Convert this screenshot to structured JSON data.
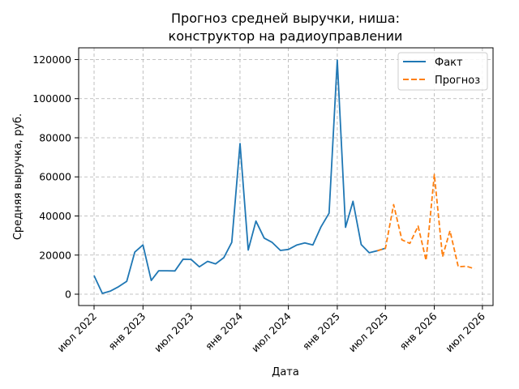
{
  "chart_data": {
    "type": "line",
    "title": "Прогноз средней выручки, ниша:",
    "subtitle": "конструктор на радиоуправлении",
    "xlabel": "Дата",
    "ylabel": "Средняя выручка, руб.",
    "x_ticks": [
      "июл 2022",
      "янв 2023",
      "июл 2023",
      "янв 2024",
      "июл 2024",
      "янв 2025",
      "июл 2025",
      "янв 2026",
      "июл 2026"
    ],
    "y_ticks": [
      0,
      20000,
      40000,
      60000,
      80000,
      100000,
      120000
    ],
    "xlim": [
      "2022-05-04",
      "2026-08-10"
    ],
    "ylim": [
      -5800,
      126000
    ],
    "grid": true,
    "legend_position": "top-right",
    "series": [
      {
        "name": "Факт",
        "color": "#1f77b4",
        "style": "solid",
        "points": [
          [
            "2022-07-01",
            9500
          ],
          [
            "2022-08-01",
            400
          ],
          [
            "2022-09-01",
            1600
          ],
          [
            "2022-10-01",
            3800
          ],
          [
            "2022-11-01",
            6600
          ],
          [
            "2022-12-01",
            21500
          ],
          [
            "2023-01-01",
            25200
          ],
          [
            "2023-02-01",
            7000
          ],
          [
            "2023-03-01",
            12000
          ],
          [
            "2023-04-01",
            12000
          ],
          [
            "2023-05-01",
            11900
          ],
          [
            "2023-06-01",
            17900
          ],
          [
            "2023-07-01",
            17800
          ],
          [
            "2023-08-01",
            14000
          ],
          [
            "2023-09-01",
            16800
          ],
          [
            "2023-10-01",
            15500
          ],
          [
            "2023-11-01",
            18700
          ],
          [
            "2023-12-01",
            26500
          ],
          [
            "2024-01-01",
            77000
          ],
          [
            "2024-02-01",
            22600
          ],
          [
            "2024-03-01",
            37400
          ],
          [
            "2024-04-01",
            28700
          ],
          [
            "2024-05-01",
            26500
          ],
          [
            "2024-06-01",
            22400
          ],
          [
            "2024-07-01",
            22900
          ],
          [
            "2024-08-01",
            25100
          ],
          [
            "2024-09-01",
            26200
          ],
          [
            "2024-10-01",
            25200
          ],
          [
            "2024-11-01",
            34500
          ],
          [
            "2024-12-01",
            41400
          ],
          [
            "2025-01-01",
            119700
          ],
          [
            "2025-02-01",
            34200
          ],
          [
            "2025-03-01",
            47500
          ],
          [
            "2025-04-01",
            25400
          ],
          [
            "2025-05-01",
            21200
          ],
          [
            "2025-06-01",
            22200
          ],
          [
            "2025-07-01",
            23500
          ]
        ]
      },
      {
        "name": "Прогноз",
        "color": "#ff7f0e",
        "style": "dashed",
        "points": [
          [
            "2025-06-01",
            22200
          ],
          [
            "2025-07-01",
            23500
          ],
          [
            "2025-08-01",
            45800
          ],
          [
            "2025-09-01",
            27800
          ],
          [
            "2025-10-01",
            26000
          ],
          [
            "2025-11-01",
            34800
          ],
          [
            "2025-12-01",
            17300
          ],
          [
            "2026-01-01",
            61200
          ],
          [
            "2026-02-01",
            19200
          ],
          [
            "2026-03-01",
            32400
          ],
          [
            "2026-04-01",
            14000
          ],
          [
            "2026-05-01",
            14300
          ],
          [
            "2026-06-01",
            13000
          ]
        ]
      }
    ]
  }
}
